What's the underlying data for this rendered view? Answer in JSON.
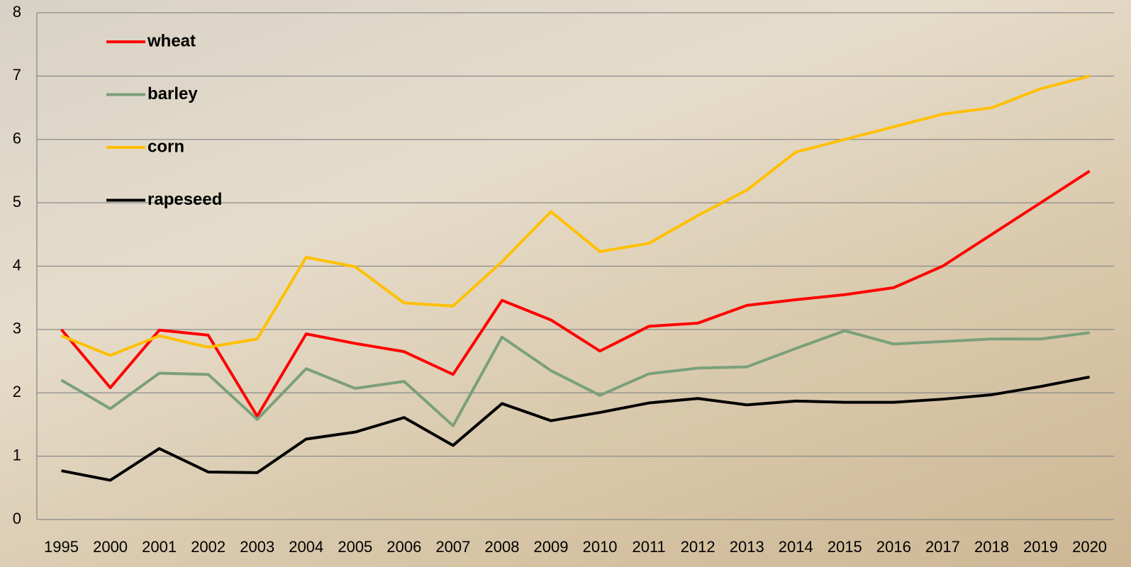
{
  "chart_data": {
    "type": "line",
    "categories": [
      "1995",
      "2000",
      "2001",
      "2002",
      "2003",
      "2004",
      "2005",
      "2006",
      "2007",
      "2008",
      "2009",
      "2010",
      "2011",
      "2012",
      "2013",
      "2014",
      "2015",
      "2016",
      "2017",
      "2018",
      "2019",
      "2020"
    ],
    "series": [
      {
        "name": "wheat",
        "color": "#ff0000",
        "values": [
          3.0,
          2.08,
          2.99,
          2.91,
          1.63,
          2.93,
          2.78,
          2.65,
          2.29,
          3.46,
          3.15,
          2.66,
          3.05,
          3.1,
          3.38,
          3.47,
          3.55,
          3.66,
          4.0,
          4.5,
          5.0,
          5.5
        ]
      },
      {
        "name": "barley",
        "color": "#7aa07a",
        "values": [
          2.2,
          1.75,
          2.31,
          2.29,
          1.58,
          2.38,
          2.07,
          2.18,
          1.48,
          2.88,
          2.35,
          1.96,
          2.3,
          2.39,
          2.41,
          2.7,
          2.98,
          2.77,
          2.81,
          2.85,
          2.85,
          2.95
        ]
      },
      {
        "name": "corn",
        "color": "#ffc000",
        "values": [
          2.9,
          2.59,
          2.9,
          2.72,
          2.85,
          4.14,
          3.99,
          3.42,
          3.37,
          4.07,
          4.86,
          4.23,
          4.36,
          4.8,
          5.2,
          5.8,
          6.0,
          6.2,
          6.4,
          6.5,
          6.8,
          7.0
        ]
      },
      {
        "name": "rapeseed",
        "color": "#000000",
        "values": [
          0.77,
          0.62,
          1.12,
          0.75,
          0.74,
          1.27,
          1.38,
          1.61,
          1.17,
          1.83,
          1.56,
          1.69,
          1.84,
          1.91,
          1.81,
          1.87,
          1.85,
          1.85,
          1.9,
          1.97,
          2.1,
          2.25
        ]
      }
    ],
    "ylim": [
      0,
      8
    ],
    "yticks": [
      0,
      1,
      2,
      3,
      4,
      5,
      6,
      7,
      8
    ],
    "grid": true,
    "legend": "top-left"
  }
}
